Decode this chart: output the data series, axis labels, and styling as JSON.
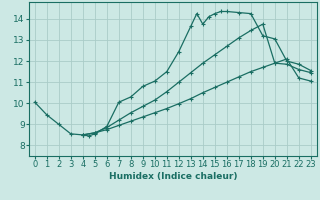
{
  "xlabel": "Humidex (Indice chaleur)",
  "xlim": [
    -0.5,
    23.5
  ],
  "ylim": [
    7.5,
    14.8
  ],
  "yticks": [
    8,
    9,
    10,
    11,
    12,
    13,
    14
  ],
  "xticks": [
    0,
    1,
    2,
    3,
    4,
    5,
    6,
    7,
    8,
    9,
    10,
    11,
    12,
    13,
    14,
    15,
    16,
    17,
    18,
    19,
    20,
    21,
    22,
    23
  ],
  "bg_color": "#cce8e4",
  "grid_color": "#aaccc8",
  "line_color": "#1a6e63",
  "curve1_x": [
    0,
    1,
    2,
    3,
    4,
    4.5,
    5,
    6,
    7,
    8,
    9,
    10,
    11,
    12,
    13,
    13.5,
    14,
    14.5,
    15,
    15.5,
    16,
    17,
    18,
    19,
    20,
    21,
    22,
    23
  ],
  "curve1_y": [
    10.05,
    9.45,
    9.0,
    8.55,
    8.5,
    8.45,
    8.55,
    8.9,
    10.05,
    10.3,
    10.8,
    11.05,
    11.5,
    12.45,
    13.65,
    14.25,
    13.75,
    14.1,
    14.25,
    14.35,
    14.35,
    14.3,
    14.25,
    13.2,
    13.05,
    12.0,
    11.85,
    11.55
  ],
  "curve2_x": [
    4,
    5,
    6,
    7,
    8,
    9,
    10,
    11,
    12,
    13,
    14,
    15,
    16,
    17,
    18,
    19,
    20,
    21,
    22,
    23
  ],
  "curve2_y": [
    8.5,
    8.6,
    8.85,
    9.2,
    9.55,
    9.85,
    10.15,
    10.55,
    11.0,
    11.45,
    11.9,
    12.3,
    12.7,
    13.1,
    13.45,
    13.75,
    11.9,
    11.85,
    11.6,
    11.45
  ],
  "curve3_x": [
    4,
    5,
    6,
    7,
    8,
    9,
    10,
    11,
    12,
    13,
    14,
    15,
    16,
    17,
    18,
    19,
    20,
    21,
    22,
    23
  ],
  "curve3_y": [
    8.5,
    8.6,
    8.75,
    8.95,
    9.15,
    9.35,
    9.55,
    9.75,
    9.98,
    10.22,
    10.5,
    10.75,
    11.0,
    11.25,
    11.5,
    11.7,
    11.9,
    12.1,
    11.2,
    11.05
  ],
  "marker": "+",
  "marker_size": 3.5,
  "linewidth": 0.9,
  "xlabel_fontsize": 6.5,
  "tick_fontsize": 6.0
}
